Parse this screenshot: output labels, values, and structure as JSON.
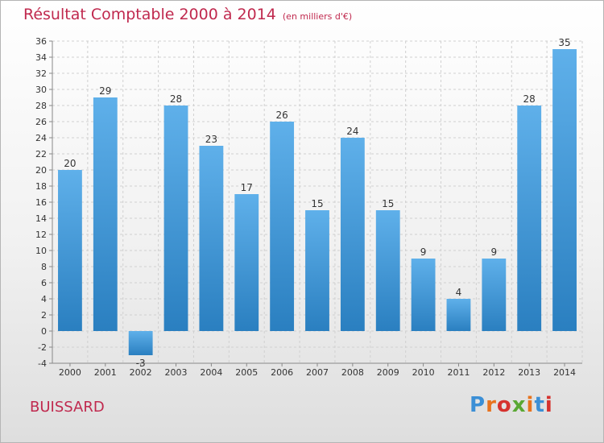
{
  "chart_data": {
    "type": "bar",
    "title": "Résultat Comptable 2000 à 2014",
    "subtitle": "(en milliers d'€)",
    "categories": [
      "2000",
      "2001",
      "2002",
      "2003",
      "2004",
      "2005",
      "2006",
      "2007",
      "2008",
      "2009",
      "2010",
      "2011",
      "2012",
      "2013",
      "2014"
    ],
    "values": [
      20,
      29,
      -3,
      28,
      23,
      17,
      26,
      15,
      24,
      15,
      9,
      4,
      9,
      28,
      35
    ],
    "data_labels": [
      "20",
      "29",
      "-3",
      "28",
      "23",
      "17",
      "26",
      "15",
      "24",
      "15",
      "9",
      "4",
      "9",
      "28",
      "35"
    ],
    "ylim": [
      -4,
      36
    ],
    "yticks": [
      -4,
      -2,
      0,
      2,
      4,
      6,
      8,
      10,
      12,
      14,
      16,
      18,
      20,
      22,
      24,
      26,
      28,
      30,
      32,
      34,
      36
    ],
    "xlabel": "",
    "ylabel": "",
    "grid": true,
    "colors": {
      "bar_top": "#5fb0ea",
      "bar_bottom": "#2a7fc0",
      "title": "#c0294e"
    }
  },
  "footer": {
    "location": "BUISSARD",
    "brand": "Proxiti",
    "brand_colors": [
      "#3b8fd6",
      "#e8731e",
      "#d6322e",
      "#5aa834",
      "#e8731e",
      "#3b8fd6",
      "#d6322e"
    ]
  }
}
